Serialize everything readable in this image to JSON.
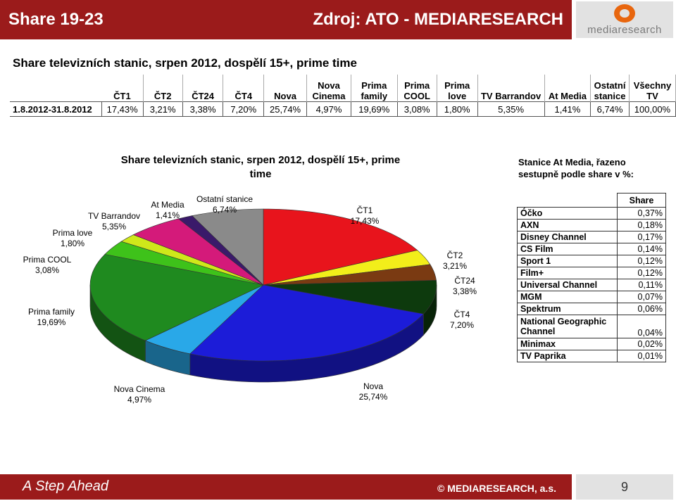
{
  "header": {
    "title": "Share 19-23",
    "source": "Zdroj: ATO - MEDIARESEARCH",
    "logo_text": "mediaresearch"
  },
  "subtitle": "Share televizních stanic, srpen 2012, dospělí 15+, prime time",
  "table": {
    "headers": [
      "ČT1",
      "ČT2",
      "ČT24",
      "ČT4",
      "Nova",
      "Nova Cinema",
      "Prima family",
      "Prima COOL",
      "Prima love",
      "TV Barrandov",
      "At Media",
      "Ostatní stanice",
      "Všechny TV"
    ],
    "row_label": "1.8.2012-31.8.2012",
    "values": [
      "17,43%",
      "3,21%",
      "3,38%",
      "7,20%",
      "25,74%",
      "4,97%",
      "19,69%",
      "3,08%",
      "1,80%",
      "5,35%",
      "1,41%",
      "6,74%",
      "100,00%"
    ]
  },
  "chart_data": {
    "type": "pie",
    "title": "Share televizních stanic, srpen 2012, dospělí 15+, prime time",
    "slices": [
      {
        "name": "ČT1",
        "value": 17.43,
        "label": "17,43%",
        "color": "#e8141c"
      },
      {
        "name": "ČT2",
        "value": 3.21,
        "label": "3,21%",
        "color": "#f2ee1a"
      },
      {
        "name": "ČT24",
        "value": 3.38,
        "label": "3,38%",
        "color": "#7a3a12"
      },
      {
        "name": "ČT4",
        "value": 7.2,
        "label": "7,20%",
        "color": "#0d3a0d"
      },
      {
        "name": "Nova",
        "value": 25.74,
        "label": "25,74%",
        "color": "#1c1cd8"
      },
      {
        "name": "Nova Cinema",
        "value": 4.97,
        "label": "4,97%",
        "color": "#29a8e8"
      },
      {
        "name": "Prima family",
        "value": 19.69,
        "label": "19,69%",
        "color": "#1f8a1f"
      },
      {
        "name": "Prima COOL",
        "value": 3.08,
        "label": "3,08%",
        "color": "#3ec21a"
      },
      {
        "name": "Prima love",
        "value": 1.8,
        "label": "1,80%",
        "color": "#cfe81a"
      },
      {
        "name": "TV Barrandov",
        "value": 5.35,
        "label": "5,35%",
        "color": "#d41a7a"
      },
      {
        "name": "At Media",
        "value": 1.41,
        "label": "1,41%",
        "color": "#3a1a6a"
      },
      {
        "name": "Ostatní stanice",
        "value": 6.74,
        "label": "6,74%",
        "color": "#8a8a8a"
      }
    ]
  },
  "side_table": {
    "title": "Stanice At Media, řazeno sestupně podle share v %:",
    "header": "Share",
    "rows": [
      {
        "name": "Óčko",
        "value": "0,37%"
      },
      {
        "name": "AXN",
        "value": "0,18%"
      },
      {
        "name": "Disney Channel",
        "value": "0,17%"
      },
      {
        "name": "CS Film",
        "value": "0,14%"
      },
      {
        "name": "Sport 1",
        "value": "0,12%"
      },
      {
        "name": "Film+",
        "value": "0,12%"
      },
      {
        "name": "Universal Channel",
        "value": "0,11%"
      },
      {
        "name": "MGM",
        "value": "0,07%"
      },
      {
        "name": "Spektrum",
        "value": "0,06%"
      },
      {
        "name": "National Geographic Channel",
        "value": "0,04%"
      },
      {
        "name": "Minimax",
        "value": "0,02%"
      },
      {
        "name": "TV Paprika",
        "value": "0,01%"
      }
    ]
  },
  "footer": {
    "tagline": "A Step Ahead",
    "copyright": "© MEDIARESEARCH, a.s.",
    "page": "9"
  }
}
